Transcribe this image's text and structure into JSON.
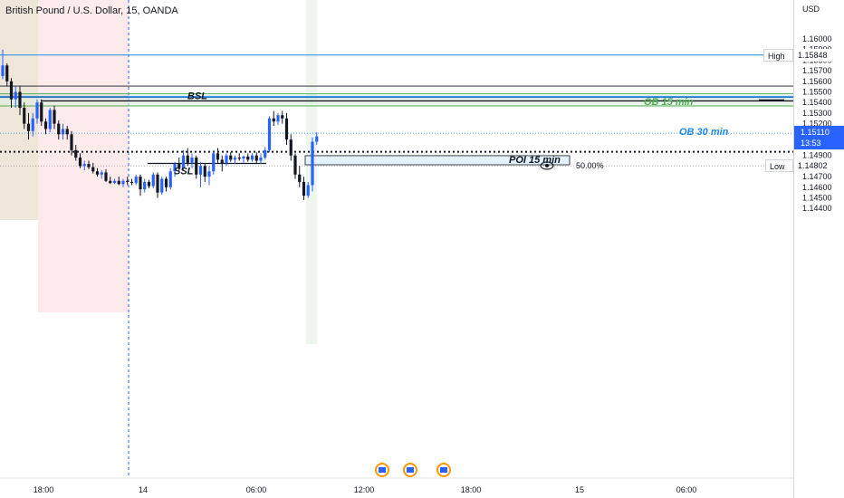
{
  "title": "British Pound / U.S. Dollar, 15, OANDA",
  "currency": "USD",
  "colors": {
    "up": "#2962ff",
    "down": "#131722",
    "blue": "#1e88e5",
    "green": "#4caf50",
    "orange": "#ff9800"
  },
  "chart_data": {
    "type": "candlestick",
    "ylim": [
      1.1435,
      1.1625
    ],
    "y_ticks": [
      "1.16000",
      "1.15900",
      "1.15800",
      "1.15700",
      "1.15600",
      "1.15500",
      "1.15400",
      "1.15300",
      "1.15200",
      "1.15000",
      "1.14900",
      "1.14700",
      "1.14600",
      "1.14500",
      "1.14400"
    ],
    "x_ticks": [
      "18:00",
      "14",
      "06:00",
      "12:00",
      "18:00",
      "15",
      "06:00"
    ],
    "candles": [
      [
        1.1565,
        1.159,
        1.1562,
        1.1575
      ],
      [
        1.1575,
        1.1577,
        1.1555,
        1.156
      ],
      [
        1.156,
        1.1563,
        1.1535,
        1.1543
      ],
      [
        1.1543,
        1.1555,
        1.1535,
        1.155
      ],
      [
        1.155,
        1.1555,
        1.1528,
        1.1535
      ],
      [
        1.1535,
        1.154,
        1.1515,
        1.152
      ],
      [
        1.152,
        1.153,
        1.1505,
        1.1513
      ],
      [
        1.1513,
        1.153,
        1.1508,
        1.1525
      ],
      [
        1.1525,
        1.1543,
        1.152,
        1.154
      ],
      [
        1.154,
        1.1543,
        1.1518,
        1.1522
      ],
      [
        1.1522,
        1.1525,
        1.151,
        1.1515
      ],
      [
        1.1515,
        1.1535,
        1.1512,
        1.1533
      ],
      [
        1.1533,
        1.1537,
        1.1515,
        1.152
      ],
      [
        1.152,
        1.1523,
        1.1505,
        1.151
      ],
      [
        1.151,
        1.152,
        1.1505,
        1.1515
      ],
      [
        1.1515,
        1.1518,
        1.1505,
        1.151
      ],
      [
        1.151,
        1.1513,
        1.149,
        1.1495
      ],
      [
        1.1495,
        1.15,
        1.1485,
        1.1488
      ],
      [
        1.1488,
        1.1492,
        1.1478,
        1.148
      ],
      [
        1.148,
        1.1485,
        1.1476,
        1.1482
      ],
      [
        1.1482,
        1.1485,
        1.1477,
        1.1479
      ],
      [
        1.1479,
        1.1483,
        1.1473,
        1.1475
      ],
      [
        1.1475,
        1.1478,
        1.147,
        1.1472
      ],
      [
        1.1472,
        1.1476,
        1.1468,
        1.1474
      ],
      [
        1.1474,
        1.1477,
        1.1465,
        1.1466
      ],
      [
        1.1466,
        1.147,
        1.1463,
        1.1464
      ],
      [
        1.1464,
        1.1468,
        1.1463,
        1.1466
      ],
      [
        1.1466,
        1.147,
        1.1462,
        1.1463
      ],
      [
        1.1463,
        1.1468,
        1.146,
        1.1466
      ],
      [
        1.1466,
        1.147,
        1.1462,
        1.1465
      ],
      [
        1.1465,
        1.1468,
        1.1462,
        1.1464
      ],
      [
        1.1464,
        1.1472,
        1.1462,
        1.147
      ],
      [
        1.147,
        1.1472,
        1.1452,
        1.1458
      ],
      [
        1.1458,
        1.1468,
        1.1455,
        1.1465
      ],
      [
        1.1465,
        1.1467,
        1.1459,
        1.1461
      ],
      [
        1.1461,
        1.1474,
        1.1459,
        1.1472
      ],
      [
        1.1472,
        1.1474,
        1.145,
        1.1455
      ],
      [
        1.1455,
        1.147,
        1.1453,
        1.1468
      ],
      [
        1.1468,
        1.147,
        1.1456,
        1.146
      ],
      [
        1.146,
        1.1478,
        1.1458,
        1.1475
      ],
      [
        1.1475,
        1.1484,
        1.147,
        1.1482
      ],
      [
        1.1482,
        1.1488,
        1.1475,
        1.1478
      ],
      [
        1.1478,
        1.1495,
        1.1476,
        1.149
      ],
      [
        1.149,
        1.1497,
        1.148,
        1.1483
      ],
      [
        1.1483,
        1.1492,
        1.1478,
        1.1488
      ],
      [
        1.1488,
        1.149,
        1.1468,
        1.1472
      ],
      [
        1.1472,
        1.1484,
        1.146,
        1.148
      ],
      [
        1.148,
        1.1482,
        1.1465,
        1.147
      ],
      [
        1.147,
        1.148,
        1.1462,
        1.1475
      ],
      [
        1.1475,
        1.1495,
        1.1472,
        1.1492
      ],
      [
        1.1492,
        1.1497,
        1.1482,
        1.1486
      ],
      [
        1.1486,
        1.149,
        1.1475,
        1.1483
      ],
      [
        1.1483,
        1.1492,
        1.148,
        1.149
      ],
      [
        1.149,
        1.1493,
        1.1484,
        1.1486
      ],
      [
        1.1486,
        1.149,
        1.1482,
        1.1488
      ],
      [
        1.1488,
        1.1492,
        1.1485,
        1.1487
      ],
      [
        1.1487,
        1.149,
        1.1483,
        1.1489
      ],
      [
        1.1489,
        1.1492,
        1.1484,
        1.1486
      ],
      [
        1.1486,
        1.1492,
        1.1484,
        1.149
      ],
      [
        1.149,
        1.1493,
        1.1483,
        1.1485
      ],
      [
        1.1485,
        1.1492,
        1.1482,
        1.1488
      ],
      [
        1.1488,
        1.1498,
        1.1486,
        1.1495
      ],
      [
        1.1495,
        1.1527,
        1.1493,
        1.1525
      ],
      [
        1.1525,
        1.1532,
        1.1518,
        1.1522
      ],
      [
        1.1522,
        1.153,
        1.1519,
        1.1528
      ],
      [
        1.1528,
        1.1532,
        1.152,
        1.1525
      ],
      [
        1.1525,
        1.153,
        1.15,
        1.1505
      ],
      [
        1.1505,
        1.151,
        1.1485,
        1.149
      ],
      [
        1.149,
        1.1492,
        1.1468,
        1.1472
      ],
      [
        1.1472,
        1.148,
        1.146,
        1.1465
      ],
      [
        1.1465,
        1.147,
        1.1448,
        1.1452
      ],
      [
        1.1452,
        1.1465,
        1.145,
        1.1462
      ],
      [
        1.1462,
        1.1507,
        1.1456,
        1.1503
      ],
      [
        1.1503,
        1.1512,
        1.15,
        1.1508
      ]
    ],
    "levels": {
      "high": 1.15848,
      "low": 1.14802,
      "current": 1.1511,
      "dotted": 1.14935,
      "bsl": 1.15415,
      "ssl": 1.14825,
      "hline_1": 1.15555,
      "blue_1": 1.15458,
      "blue_2": 1.15448,
      "green_1": 1.15482,
      "green_2": 1.15367,
      "ob15_top": 1.15455,
      "ob15_bottom": 1.15367,
      "poi_top": 1.14898,
      "poi_bottom": 1.14812
    },
    "labels": {
      "bsl": "BSL",
      "ssl": "SSL",
      "ob30": "OB 30 min",
      "ob15": "OB 15 min",
      "poi": "POI 15 min",
      "poi_pct": "50.00%",
      "high_tag": "High",
      "low_tag": "Low",
      "high_price": "1.15848",
      "low_price": "1.14802",
      "current_price": "1.15110",
      "countdown": "13:53"
    }
  }
}
